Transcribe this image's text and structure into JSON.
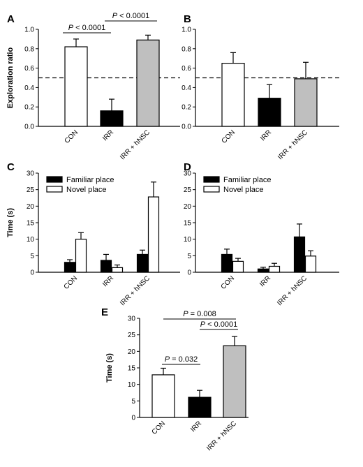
{
  "chart_data": [
    {
      "panel": "A",
      "type": "bar",
      "ylabel": "Exploration ratio",
      "ylim": [
        0,
        1.0
      ],
      "yticks": [
        "0.0",
        "0.2",
        "0.4",
        "0.6",
        "0.8",
        "1.0"
      ],
      "reference_line": 0.5,
      "categories": [
        "CON",
        "IRR",
        "IRR + hNSC"
      ],
      "values": [
        0.82,
        0.16,
        0.89
      ],
      "errors": [
        0.08,
        0.12,
        0.05
      ],
      "colors": [
        "#ffffff",
        "#000000",
        "#bfbfbf"
      ],
      "annotations": [
        {
          "text": "P < 0.0001",
          "from": 0,
          "to": 1
        },
        {
          "text": "P < 0.0001",
          "from": 1,
          "to": 2
        }
      ]
    },
    {
      "panel": "B",
      "type": "bar",
      "ylabel": "",
      "ylim": [
        0,
        1.0
      ],
      "yticks": [
        "0.0",
        "0.2",
        "0.4",
        "0.6",
        "0.8",
        "1.0"
      ],
      "reference_line": 0.5,
      "categories": [
        "CON",
        "IRR",
        "IRR + hNSC"
      ],
      "values": [
        0.65,
        0.29,
        0.49
      ],
      "errors": [
        0.11,
        0.14,
        0.17
      ],
      "colors": [
        "#ffffff",
        "#000000",
        "#bfbfbf"
      ],
      "annotations": []
    },
    {
      "panel": "C",
      "type": "bar",
      "ylabel": "Time (s)",
      "ylim": [
        0,
        30
      ],
      "yticks": [
        "0",
        "5",
        "10",
        "15",
        "20",
        "25",
        "30"
      ],
      "categories": [
        "CON",
        "IRR",
        "IRR + hNSC"
      ],
      "series": [
        {
          "name": "Familiar place",
          "color": "#000000",
          "values": [
            3.0,
            3.6,
            5.4
          ],
          "errors": [
            0.8,
            1.8,
            1.3
          ]
        },
        {
          "name": "Novel place",
          "color": "#ffffff",
          "values": [
            10.0,
            1.4,
            22.8
          ],
          "errors": [
            2.0,
            0.8,
            4.5
          ]
        }
      ]
    },
    {
      "panel": "D",
      "type": "bar",
      "ylabel": "",
      "ylim": [
        0,
        30
      ],
      "yticks": [
        "0",
        "5",
        "10",
        "15",
        "20",
        "25",
        "30"
      ],
      "categories": [
        "CON",
        "IRR",
        "IRR + hNSC"
      ],
      "series": [
        {
          "name": "Familiar place",
          "color": "#000000",
          "values": [
            5.4,
            1.0,
            10.7
          ],
          "errors": [
            1.6,
            0.5,
            3.9
          ]
        },
        {
          "name": "Novel place",
          "color": "#ffffff",
          "values": [
            3.3,
            1.8,
            4.9
          ],
          "errors": [
            0.9,
            0.9,
            1.6
          ]
        }
      ]
    },
    {
      "panel": "E",
      "type": "bar",
      "ylabel": "Time (s)",
      "ylim": [
        0,
        30
      ],
      "yticks": [
        "0",
        "5",
        "10",
        "15",
        "20",
        "25",
        "30"
      ],
      "categories": [
        "CON",
        "IRR",
        "IRR + hNSC"
      ],
      "values": [
        12.9,
        6.1,
        21.7
      ],
      "errors": [
        2.0,
        2.1,
        2.8
      ],
      "colors": [
        "#ffffff",
        "#000000",
        "#bfbfbf"
      ],
      "annotations": [
        {
          "text": "P = 0.008",
          "from": 0,
          "to": 2
        },
        {
          "text": "P < 0.0001",
          "from": 1,
          "to": 2
        },
        {
          "text": "P = 0.032",
          "from": 0,
          "to": 1
        }
      ]
    }
  ]
}
